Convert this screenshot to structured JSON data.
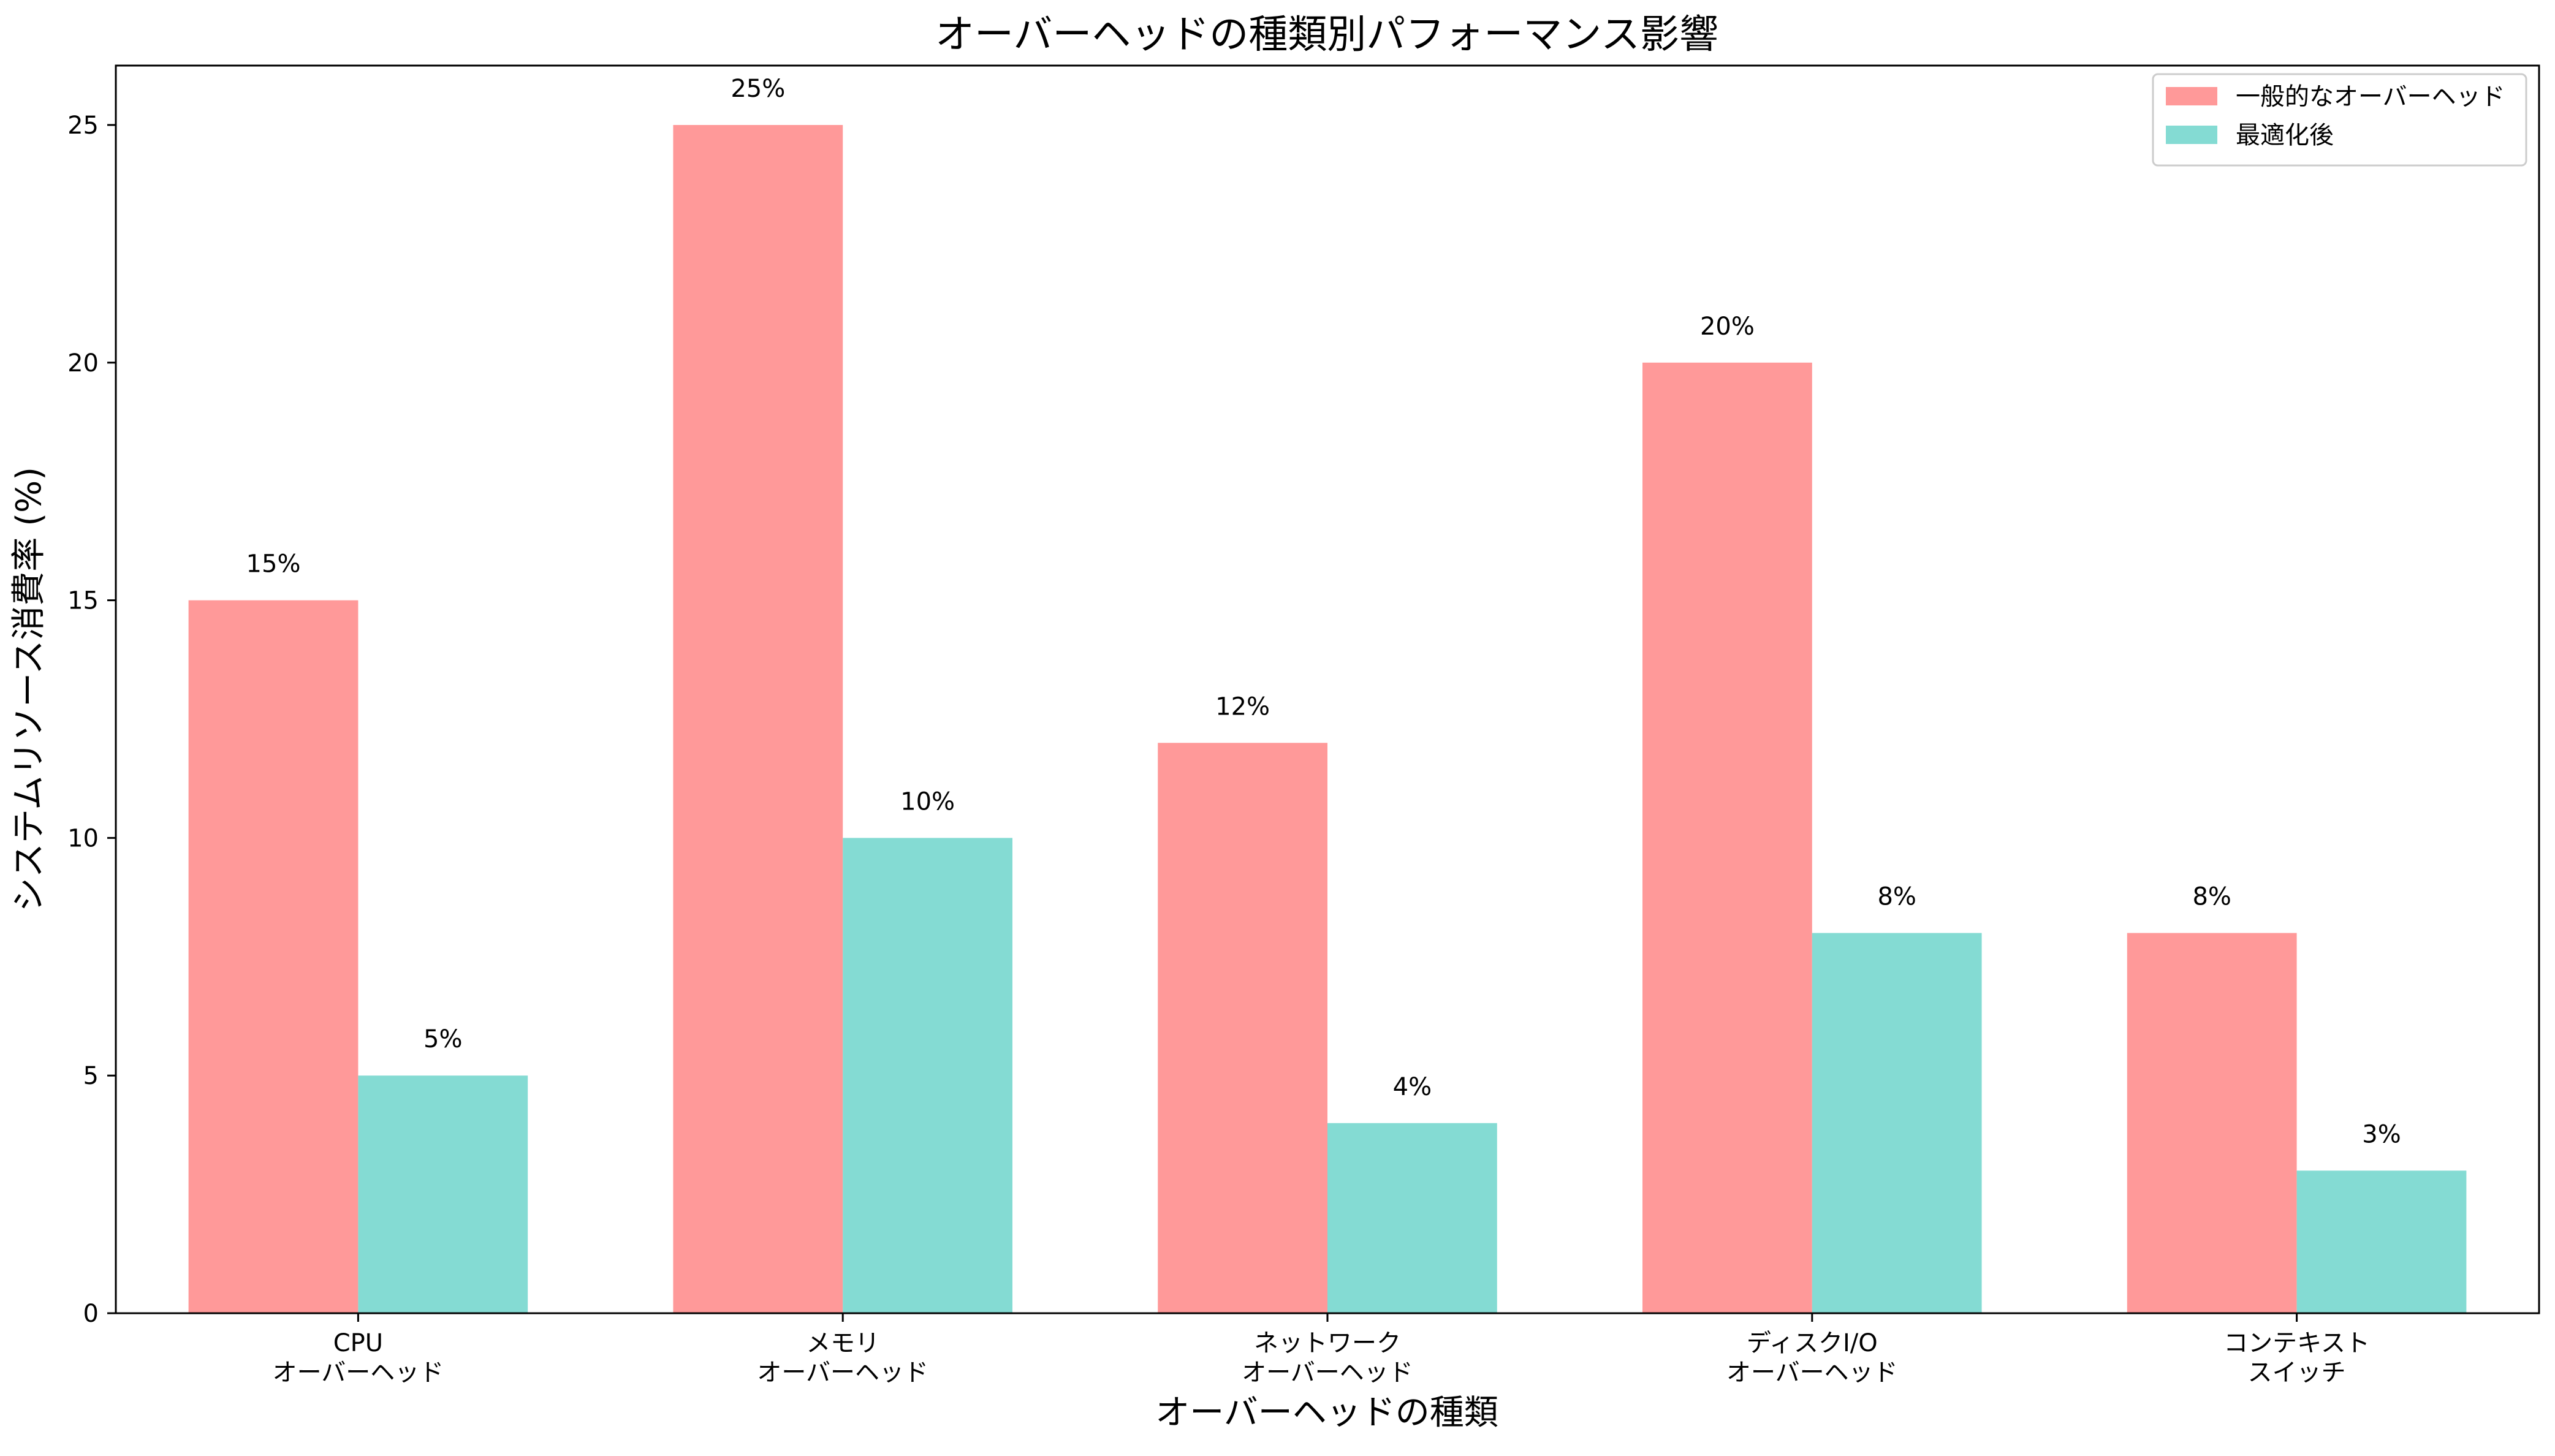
{
  "chart_data": {
    "type": "bar",
    "title": "オーバーヘッドの種類別パフォーマンス影響",
    "xlabel": "オーバーヘッドの種類",
    "ylabel": "システムリソース消費率 (%)",
    "categories": [
      [
        "CPU",
        "オーバーヘッド"
      ],
      [
        "メモリ",
        "オーバーヘッド"
      ],
      [
        "ネットワーク",
        "オーバーヘッド"
      ],
      [
        "ディスクI/O",
        "オーバーヘッド"
      ],
      [
        "コンテキスト",
        "スイッチ"
      ]
    ],
    "series": [
      {
        "name": "一般的なオーバーヘッド",
        "color": "#ff9999",
        "values": [
          15,
          25,
          12,
          20,
          8
        ],
        "labels": [
          "15%",
          "25%",
          "12%",
          "20%",
          "8%"
        ]
      },
      {
        "name": "最適化後",
        "color": "#84dbd3",
        "values": [
          5,
          10,
          4,
          8,
          3
        ],
        "labels": [
          "5%",
          "10%",
          "4%",
          "8%",
          "3%"
        ]
      }
    ],
    "ylim": [
      0,
      26.25
    ],
    "yticks": [
      0,
      5,
      10,
      15,
      20,
      25
    ],
    "grid": false,
    "legend_position": "top-right"
  }
}
